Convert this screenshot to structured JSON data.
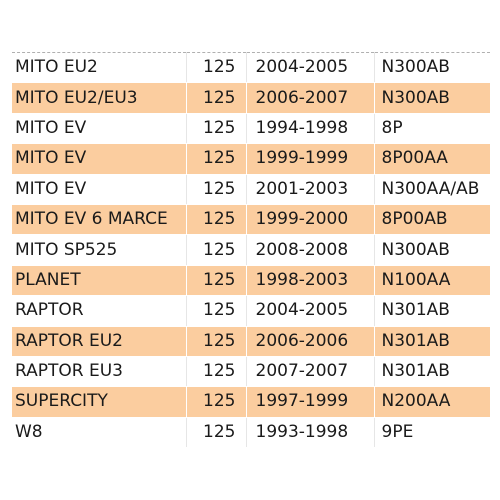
{
  "colors": {
    "row_highlight": "#fbcd9f",
    "row_plain": "#ffffff"
  },
  "rows": [
    {
      "model": "MITO EU2",
      "cc": "125",
      "years": "2004-2005",
      "code": "N300AB",
      "shaded": false
    },
    {
      "model": "MITO EU2/EU3",
      "cc": "125",
      "years": "2006-2007",
      "code": "N300AB",
      "shaded": true
    },
    {
      "model": "MITO EV",
      "cc": "125",
      "years": "1994-1998",
      "code": "8P",
      "shaded": false
    },
    {
      "model": "MITO EV",
      "cc": "125",
      "years": "1999-1999",
      "code": "8P00AA",
      "shaded": true
    },
    {
      "model": "MITO EV",
      "cc": "125",
      "years": "2001-2003",
      "code": "N300AA/AB",
      "shaded": false
    },
    {
      "model": "MITO EV 6 MARCE",
      "cc": "125",
      "years": "1999-2000",
      "code": "8P00AB",
      "shaded": true
    },
    {
      "model": "MITO SP525",
      "cc": "125",
      "years": "2008-2008",
      "code": "N300AB",
      "shaded": false
    },
    {
      "model": "PLANET",
      "cc": "125",
      "years": "1998-2003",
      "code": "N100AA",
      "shaded": true
    },
    {
      "model": "RAPTOR",
      "cc": "125",
      "years": "2004-2005",
      "code": "N301AB",
      "shaded": false
    },
    {
      "model": "RAPTOR EU2",
      "cc": "125",
      "years": "2006-2006",
      "code": "N301AB",
      "shaded": true
    },
    {
      "model": "RAPTOR EU3",
      "cc": "125",
      "years": "2007-2007",
      "code": "N301AB",
      "shaded": false
    },
    {
      "model": "SUPERCITY",
      "cc": "125",
      "years": "1997-1999",
      "code": "N200AA",
      "shaded": true
    },
    {
      "model": "W8",
      "cc": "125",
      "years": "1993-1998",
      "code": "9PE",
      "shaded": false
    }
  ]
}
